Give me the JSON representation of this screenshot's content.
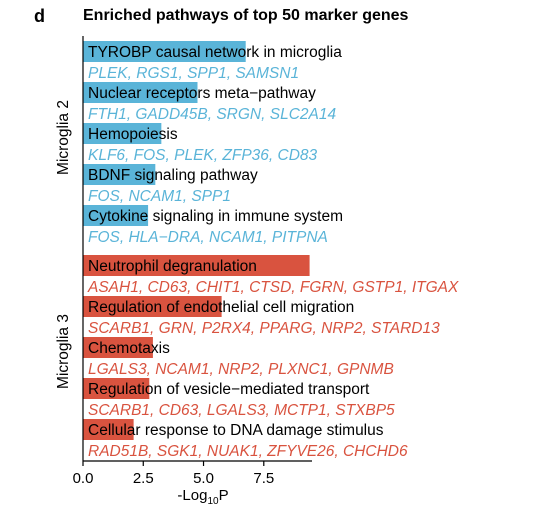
{
  "panel_label": "d",
  "chart_data": {
    "type": "bar",
    "orientation": "horizontal",
    "title": "Enriched pathways of top 50 marker genes",
    "xlabel": {
      "prefix": "-Log",
      "sub": "10",
      "suffix": "P"
    },
    "xlim": [
      0,
      9.5
    ],
    "xticks": [
      0.0,
      2.5,
      5.0,
      7.5
    ],
    "xtick_labels": [
      "0.0",
      "2.5",
      "5.0",
      "7.5"
    ],
    "groups": [
      {
        "name": "Microglia 2",
        "color": "#5AB4D8",
        "gene_color": "#5AB4D8",
        "pathways": [
          {
            "label": "TYROBP causal network in microglia",
            "value": 6.75,
            "genes": "PLEK, RGS1, SPP1, SAMSN1"
          },
          {
            "label": "Nuclear receptors meta−pathway",
            "value": 4.75,
            "genes": "FTH1, GADD45B, SRGN, SLC2A14"
          },
          {
            "label": "Hemopoiesis",
            "value": 3.25,
            "genes": "KLF6, FOS, PLEK, ZFP36, CD83"
          },
          {
            "label": "BDNF signaling pathway",
            "value": 3.0,
            "genes": "FOS, NCAM1, SPP1"
          },
          {
            "label": "Cytokine signaling in immune system",
            "value": 2.7,
            "genes": "FOS, HLA−DRA, NCAM1, PITPNA"
          }
        ]
      },
      {
        "name": "Microglia 3",
        "color": "#D9533F",
        "gene_color": "#D9533F",
        "pathways": [
          {
            "label": "Neutrophil degranulation",
            "value": 9.4,
            "genes": "ASAH1, CD63, CHIT1, CTSD, FGRN, GSTP1, ITGAX"
          },
          {
            "label": "Regulation of endothelial cell migration",
            "value": 5.75,
            "genes": "SCARB1, GRN, P2RX4, PPARG, NRP2, STARD13"
          },
          {
            "label": "Chemotaxis",
            "value": 2.9,
            "genes": "LGALS3, NCAM1, NRP2, PLXNC1, GPNMB"
          },
          {
            "label": "Regulation of vesicle−mediated transport",
            "value": 2.75,
            "genes": "SCARB1, CD63, LGALS3, MCTP1, STXBP5"
          },
          {
            "label": "Cellular response to DNA damage stimulus",
            "value": 2.1,
            "genes": "RAD51B, SGK1, NUAK1, ZFYVE26, CHCHD6"
          }
        ]
      }
    ]
  }
}
